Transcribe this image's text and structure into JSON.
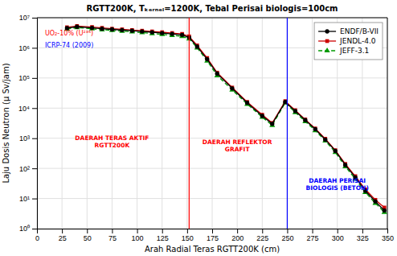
{
  "chart_data": {
    "type": "line",
    "title": "RGTT200K, Tₖₑᵣₙₑₗ=1200K, Tebal Perisai biologis=100cm",
    "xlabel": "Arah Radial Teras RGTT200K (cm)",
    "ylabel": "Laju Dosis Neutron (μ Sv/jam)",
    "x": [
      30,
      40,
      55,
      65,
      75,
      85,
      95,
      105,
      115,
      125,
      135,
      145,
      152,
      160,
      170,
      180,
      195,
      210,
      225,
      235,
      248,
      258,
      268,
      278,
      288,
      298,
      308,
      318,
      328,
      338,
      347
    ],
    "series": [
      {
        "name": "ENDF/B-VII",
        "color": "#000000",
        "marker": "circle",
        "line_style": "solid",
        "values": [
          4500000,
          5000000,
          4600000,
          4300000,
          4100000,
          3900000,
          3700000,
          3500000,
          3300000,
          3100000,
          2900000,
          2700000,
          2200000,
          1100000,
          420000,
          140000,
          45000,
          15000,
          5500,
          3000,
          16000,
          8000,
          4000,
          2000,
          900,
          380,
          130,
          50,
          18,
          8,
          4
        ]
      },
      {
        "name": "JENDL-4.0",
        "color": "#cc0000",
        "marker": "square",
        "line_style": "solid",
        "values": [
          4800000,
          5300000,
          4900000,
          4600000,
          4300000,
          4100000,
          3900000,
          3700000,
          3500000,
          3300000,
          3100000,
          2900000,
          2400000,
          1200000,
          460000,
          150000,
          48000,
          16000,
          6000,
          3200,
          17000,
          8500,
          4200,
          2100,
          960,
          400,
          140,
          55,
          20,
          9,
          5
        ]
      },
      {
        "name": "JEFF-3.1",
        "color": "#009900",
        "marker": "triangle",
        "line_style": "dashed",
        "values": [
          4200000,
          4700000,
          4300000,
          4000000,
          3800000,
          3600000,
          3400000,
          3200000,
          3000000,
          2800000,
          2600000,
          2400000,
          2000000,
          1000000,
          370000,
          120000,
          40000,
          13500,
          5000,
          2700,
          15000,
          7200,
          3600,
          1800,
          820,
          340,
          115,
          44,
          16,
          7,
          3.5
        ]
      }
    ],
    "xlim": [
      0,
      350
    ],
    "ylim": [
      1,
      10000000
    ],
    "xticks": [
      0,
      25,
      50,
      75,
      100,
      125,
      150,
      175,
      200,
      225,
      250,
      275,
      300,
      325,
      350
    ],
    "yticks": [
      {
        "value": 1,
        "label": "10⁰"
      },
      {
        "value": 10,
        "label": "10¹"
      },
      {
        "value": 100,
        "label": "10²"
      },
      {
        "value": 1000,
        "label": "10³"
      },
      {
        "value": 10000,
        "label": "10⁴"
      },
      {
        "value": 100000,
        "label": "10⁵"
      },
      {
        "value": 1000000,
        "label": "10⁶"
      },
      {
        "value": 10000000,
        "label": "10⁷"
      }
    ],
    "log": "y",
    "grid": true,
    "legend": "upper right",
    "vlines": [
      {
        "x": 152,
        "color": "red"
      },
      {
        "x": 250,
        "color": "blue"
      }
    ],
    "region_labels": [
      {
        "text": "DAERAH TERAS AKTIF\nRGTT200K",
        "x": 75,
        "y": 800,
        "color": "red"
      },
      {
        "text": "DAERAH REFLEKTOR\nGRAFIT",
        "x": 200,
        "y": 600,
        "color": "red"
      },
      {
        "text": "DAERAH PERISAI\nBIOLOGIS (BETON)",
        "x": 300,
        "y": 30,
        "color": "blue"
      }
    ],
    "annotations": [
      {
        "text": "UO₂-10% (U²³⁵)",
        "x": 8,
        "y": 3000000,
        "color": "red"
      },
      {
        "text": "ICRP-74 (2009)",
        "x": 8,
        "y": 1200000,
        "color": "blue"
      }
    ]
  }
}
